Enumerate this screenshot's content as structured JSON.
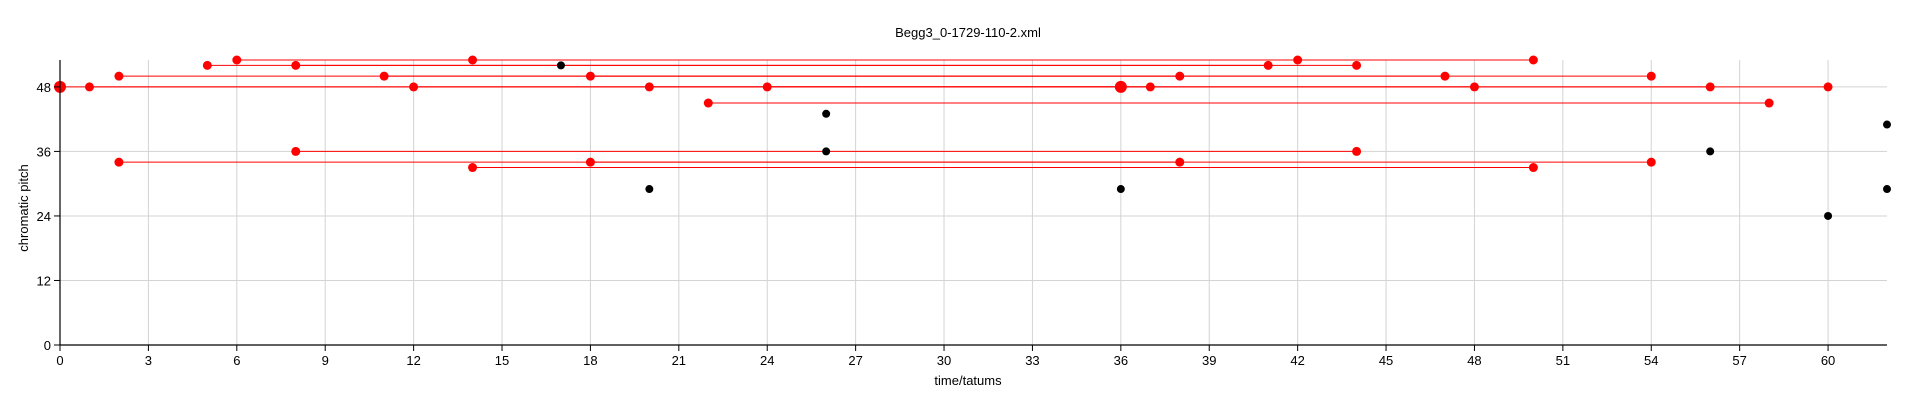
{
  "chart_data": {
    "type": "scatter",
    "title": "Begg3_0-1729-110-2.xml",
    "xlabel": "time/tatums",
    "ylabel": "chromatic pitch",
    "xlim": [
      0,
      62
    ],
    "ylim": [
      0,
      53
    ],
    "xticks": [
      0,
      3,
      6,
      9,
      12,
      15,
      18,
      21,
      24,
      27,
      30,
      33,
      36,
      39,
      42,
      45,
      48,
      51,
      54,
      57,
      60
    ],
    "yticks": [
      0,
      12,
      24,
      36,
      48
    ],
    "grid": true,
    "colors": {
      "highlight": "#ff0000",
      "plain": "#000000"
    },
    "segments": [
      {
        "x": [
          0,
          36
        ],
        "y": 48
      },
      {
        "x": [
          1,
          36
        ],
        "y": 48
      },
      {
        "x": [
          2,
          38
        ],
        "y": 50
      },
      {
        "x": [
          2,
          54
        ],
        "y": 34
      },
      {
        "x": [
          5,
          41
        ],
        "y": 52
      },
      {
        "x": [
          6,
          50
        ],
        "y": 53
      },
      {
        "x": [
          8,
          44
        ],
        "y": 52
      },
      {
        "x": [
          8,
          44
        ],
        "y": 36
      },
      {
        "x": [
          11,
          47
        ],
        "y": 50
      },
      {
        "x": [
          12,
          48
        ],
        "y": 48
      },
      {
        "x": [
          14,
          42
        ],
        "y": 53
      },
      {
        "x": [
          14,
          50
        ],
        "y": 33
      },
      {
        "x": [
          18,
          54
        ],
        "y": 50
      },
      {
        "x": [
          18,
          38
        ],
        "y": 34
      },
      {
        "x": [
          20,
          56
        ],
        "y": 48
      },
      {
        "x": [
          22,
          58
        ],
        "y": 45
      },
      {
        "x": [
          24,
          60
        ],
        "y": 48
      },
      {
        "x": [
          36,
          37
        ],
        "y": 48
      }
    ],
    "points": [
      {
        "x": 0,
        "y": 48,
        "size": "large",
        "color": "red"
      },
      {
        "x": 1,
        "y": 48,
        "color": "red"
      },
      {
        "x": 2,
        "y": 50,
        "color": "red"
      },
      {
        "x": 2,
        "y": 34,
        "color": "red"
      },
      {
        "x": 5,
        "y": 52,
        "color": "red"
      },
      {
        "x": 6,
        "y": 53,
        "color": "red"
      },
      {
        "x": 8,
        "y": 52,
        "color": "red"
      },
      {
        "x": 8,
        "y": 36,
        "color": "red"
      },
      {
        "x": 11,
        "y": 50,
        "color": "red"
      },
      {
        "x": 12,
        "y": 48,
        "color": "red"
      },
      {
        "x": 14,
        "y": 53,
        "color": "red"
      },
      {
        "x": 14,
        "y": 33,
        "color": "red"
      },
      {
        "x": 17,
        "y": 52,
        "color": "black"
      },
      {
        "x": 18,
        "y": 50,
        "color": "red"
      },
      {
        "x": 18,
        "y": 34,
        "color": "red"
      },
      {
        "x": 20,
        "y": 48,
        "color": "red"
      },
      {
        "x": 20,
        "y": 29,
        "color": "black"
      },
      {
        "x": 22,
        "y": 45,
        "color": "red"
      },
      {
        "x": 24,
        "y": 48,
        "color": "red"
      },
      {
        "x": 26,
        "y": 43,
        "color": "black"
      },
      {
        "x": 26,
        "y": 36,
        "color": "black"
      },
      {
        "x": 36,
        "y": 48,
        "size": "large",
        "color": "red"
      },
      {
        "x": 36,
        "y": 29,
        "color": "black"
      },
      {
        "x": 37,
        "y": 48,
        "color": "red"
      },
      {
        "x": 38,
        "y": 50,
        "color": "red"
      },
      {
        "x": 38,
        "y": 34,
        "color": "red"
      },
      {
        "x": 41,
        "y": 52,
        "color": "red"
      },
      {
        "x": 42,
        "y": 53,
        "color": "red"
      },
      {
        "x": 44,
        "y": 52,
        "color": "red"
      },
      {
        "x": 44,
        "y": 36,
        "color": "red"
      },
      {
        "x": 47,
        "y": 50,
        "color": "red"
      },
      {
        "x": 48,
        "y": 48,
        "color": "red"
      },
      {
        "x": 50,
        "y": 53,
        "color": "red"
      },
      {
        "x": 50,
        "y": 33,
        "color": "red"
      },
      {
        "x": 54,
        "y": 50,
        "color": "red"
      },
      {
        "x": 54,
        "y": 34,
        "color": "red"
      },
      {
        "x": 56,
        "y": 48,
        "color": "red"
      },
      {
        "x": 56,
        "y": 36,
        "color": "black"
      },
      {
        "x": 58,
        "y": 45,
        "color": "red"
      },
      {
        "x": 60,
        "y": 48,
        "color": "red"
      },
      {
        "x": 60,
        "y": 24,
        "color": "black"
      },
      {
        "x": 62,
        "y": 41,
        "color": "black"
      },
      {
        "x": 62,
        "y": 29,
        "color": "black"
      }
    ]
  }
}
